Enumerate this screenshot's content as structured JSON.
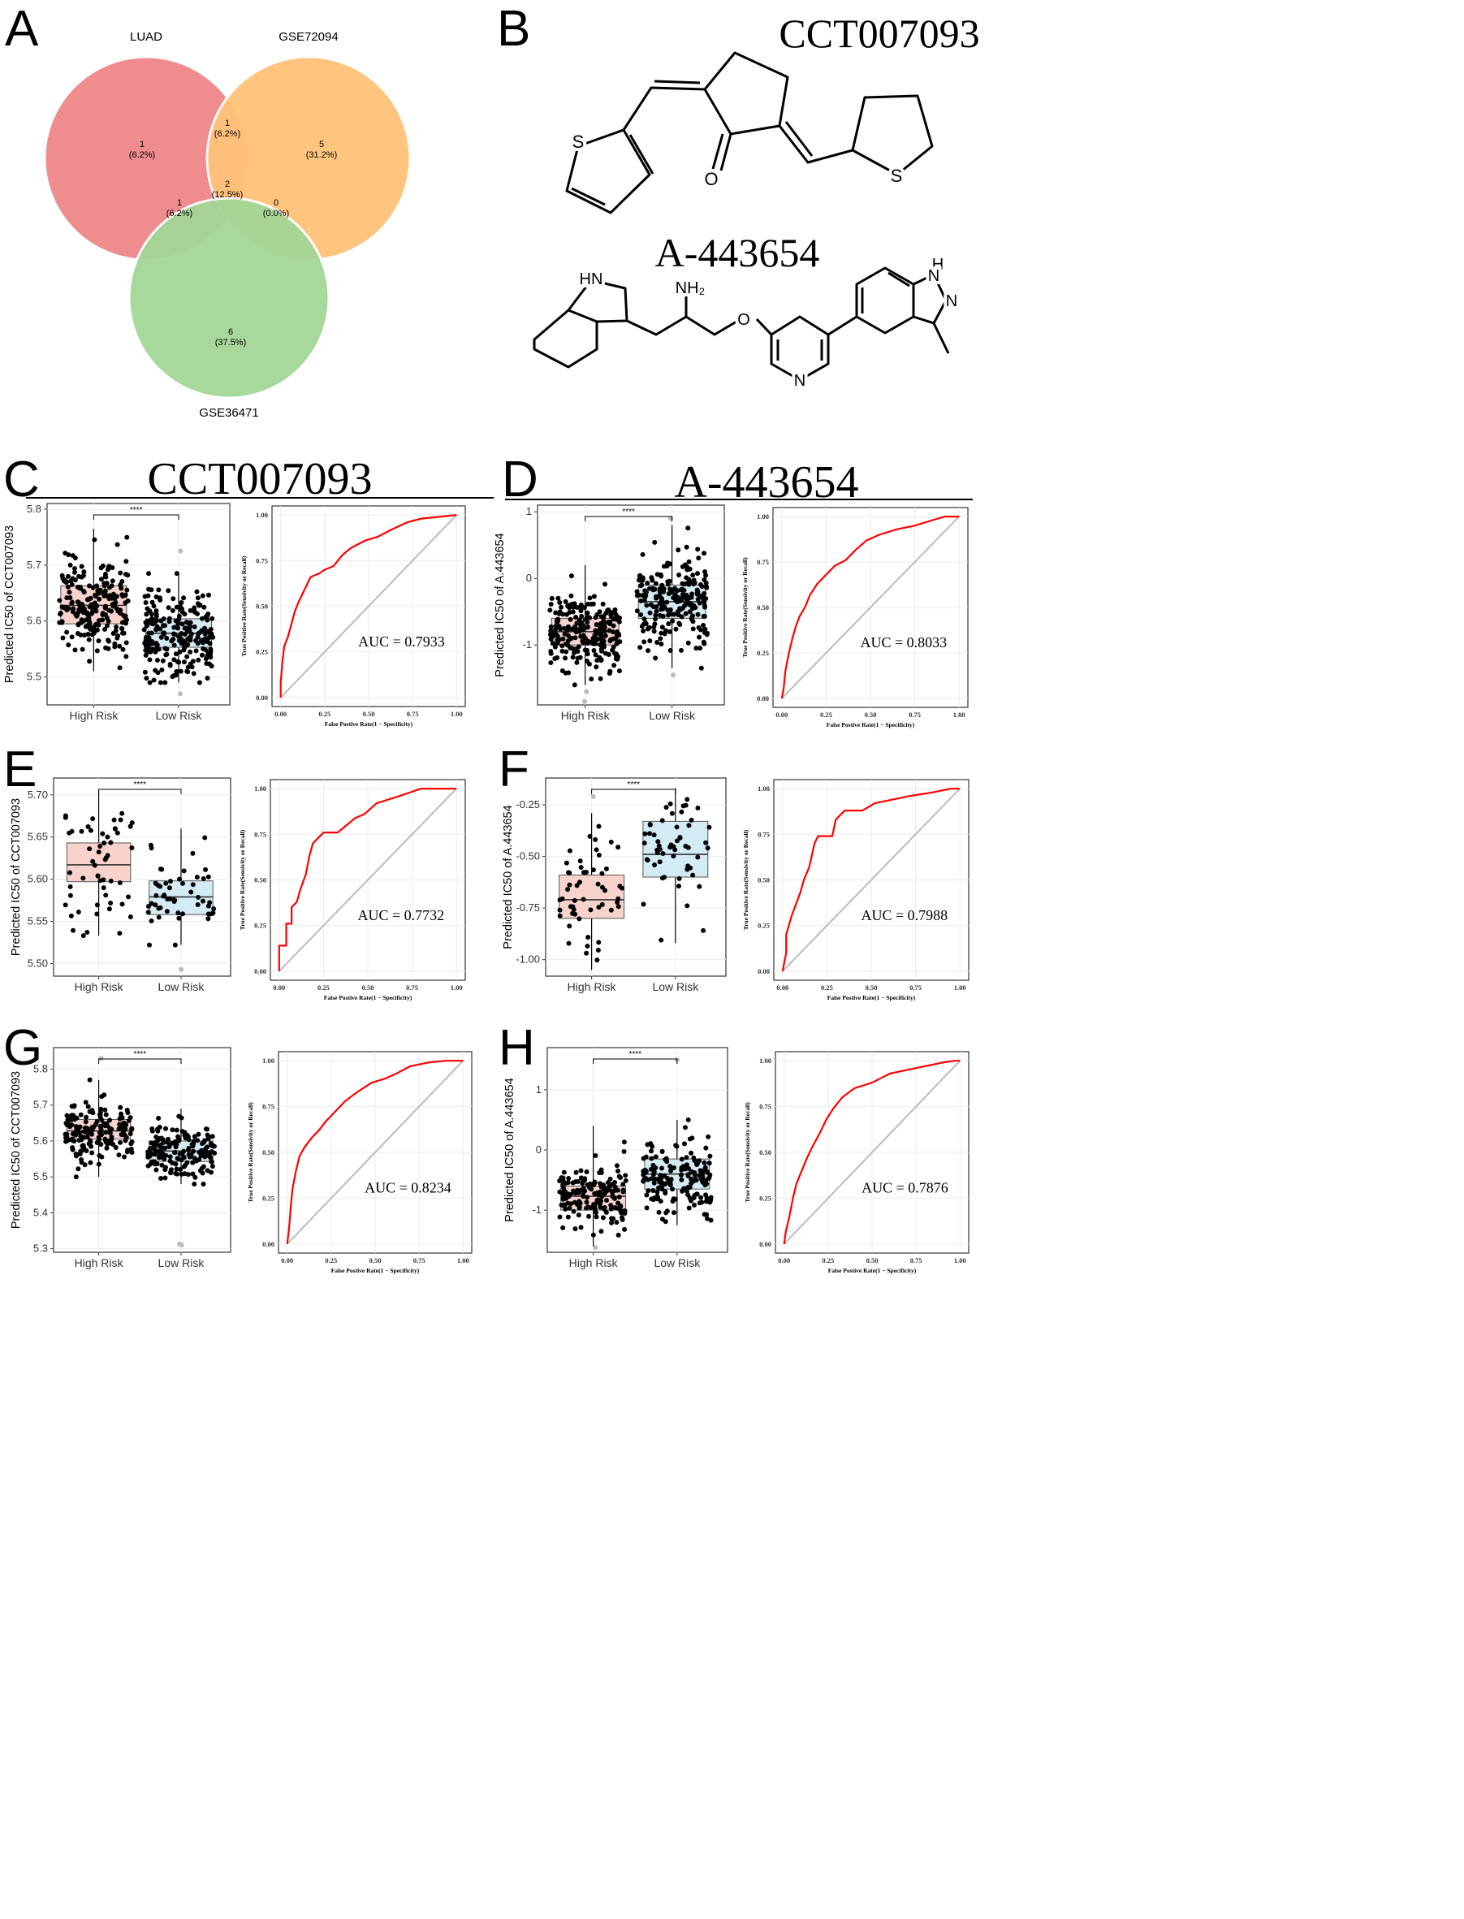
{
  "panel_letters": [
    "A",
    "B",
    "C",
    "D",
    "E",
    "F",
    "G",
    "H"
  ],
  "chart_data": [
    {
      "panel": "A",
      "type": "venn",
      "sets": [
        "LUAD",
        "GSE72094",
        "GSE36471"
      ],
      "colors": {
        "LUAD": "#e8696d",
        "GSE72094": "#ffb862",
        "GSE36471": "#8ccb7f"
      },
      "regions": [
        {
          "id": "luad_only",
          "count": "1",
          "pct": "(6.2%)"
        },
        {
          "id": "gse72094_only",
          "count": "5",
          "pct": "(31.2%)"
        },
        {
          "id": "gse36471_only",
          "count": "6",
          "pct": "(37.5%)"
        },
        {
          "id": "luad_gse72094",
          "count": "1",
          "pct": "(6.2%)"
        },
        {
          "id": "luad_gse36471",
          "count": "1",
          "pct": "(6.2%)"
        },
        {
          "id": "gse72094_gse36471",
          "count": "0",
          "pct": "(0.0%)"
        },
        {
          "id": "all",
          "count": "2",
          "pct": "(12.5%)"
        }
      ]
    },
    {
      "panel": "B",
      "type": "chemical-structures",
      "compounds": [
        {
          "name": "CCT007093",
          "atoms": [
            "S",
            "O",
            "S"
          ]
        },
        {
          "name": "A-443654",
          "atoms": [
            "HN",
            "NH₂",
            "O",
            "H",
            "N",
            "N",
            "N"
          ]
        }
      ]
    },
    {
      "panel": "C",
      "type": "box",
      "section_title": "CCT007093",
      "ylabel": "Predicted IC50 of CCT007093",
      "categories": [
        "High Risk",
        "Low Risk"
      ],
      "ylim": [
        5.45,
        5.81
      ],
      "yticks": [
        "5.5",
        "5.6",
        "5.7",
        "5.8"
      ],
      "significance": "****",
      "series": [
        {
          "name": "High Risk",
          "color": "#f8d3cc",
          "q1": 5.595,
          "median": 5.628,
          "q3": 5.663,
          "wlow": 5.51,
          "whigh": 5.765,
          "n": 230,
          "sd": 0.046,
          "outliers": []
        },
        {
          "name": "Low Risk",
          "color": "#d3ebf4",
          "q1": 5.553,
          "median": 5.578,
          "q3": 5.604,
          "wlow": 5.49,
          "whigh": 5.685,
          "n": 230,
          "sd": 0.038,
          "outliers": [
            5.47,
            5.725
          ]
        }
      ]
    },
    {
      "panel": "C",
      "type": "roc",
      "auc_label": "AUC = 0.7933",
      "xlabel": "False Postive Rate(1 − Specificity)",
      "ylabel": "True Positive Rate(Sensivity or Recall)",
      "xticks": [
        "0.00",
        "0.25",
        "0.50",
        "0.75",
        "1.00"
      ],
      "yticks": [
        "0.00",
        "0.25",
        "0.50",
        "0.75",
        "1.00"
      ],
      "points": [
        [
          0,
          0
        ],
        [
          0.0,
          0.08
        ],
        [
          0.01,
          0.2
        ],
        [
          0.02,
          0.28
        ],
        [
          0.04,
          0.33
        ],
        [
          0.06,
          0.4
        ],
        [
          0.08,
          0.47
        ],
        [
          0.1,
          0.52
        ],
        [
          0.12,
          0.56
        ],
        [
          0.15,
          0.62
        ],
        [
          0.17,
          0.66
        ],
        [
          0.22,
          0.68
        ],
        [
          0.25,
          0.7
        ],
        [
          0.3,
          0.72
        ],
        [
          0.35,
          0.78
        ],
        [
          0.4,
          0.82
        ],
        [
          0.48,
          0.86
        ],
        [
          0.55,
          0.88
        ],
        [
          0.63,
          0.92
        ],
        [
          0.72,
          0.96
        ],
        [
          0.8,
          0.98
        ],
        [
          0.9,
          0.99
        ],
        [
          1,
          1
        ]
      ]
    },
    {
      "panel": "D",
      "type": "box",
      "section_title": "A-443654",
      "ylabel": "Predicted IC50 of A.443654",
      "categories": [
        "High Risk",
        "Low Risk"
      ],
      "ylim": [
        -1.9,
        1.1
      ],
      "yticks": [
        "-1",
        "0",
        "1"
      ],
      "significance": "****",
      "series": [
        {
          "name": "High Risk",
          "color": "#f8d3cc",
          "q1": -1.0,
          "median": -0.8,
          "q3": -0.6,
          "wlow": -1.6,
          "whigh": 0.2,
          "n": 230,
          "sd": 0.28,
          "outliers": [
            -1.85,
            -1.7
          ]
        },
        {
          "name": "Low Risk",
          "color": "#d3ebf4",
          "q1": -0.6,
          "median": -0.35,
          "q3": -0.1,
          "wlow": -1.35,
          "whigh": 0.8,
          "n": 230,
          "sd": 0.35,
          "outliers": [
            0.9,
            -1.45
          ]
        }
      ]
    },
    {
      "panel": "D",
      "type": "roc",
      "auc_label": "AUC = 0.8033",
      "xlabel": "False Postive Rate(1 − Specificity)",
      "ylabel": "True Positive Rate(Sensivity or Recall)",
      "xticks": [
        "0.00",
        "0.25",
        "0.50",
        "0.75",
        "1.00"
      ],
      "yticks": [
        "0.00",
        "0.25",
        "0.50",
        "0.75",
        "1.00"
      ],
      "points": [
        [
          0,
          0
        ],
        [
          0.01,
          0.05
        ],
        [
          0.02,
          0.15
        ],
        [
          0.04,
          0.25
        ],
        [
          0.06,
          0.33
        ],
        [
          0.08,
          0.4
        ],
        [
          0.1,
          0.45
        ],
        [
          0.13,
          0.5
        ],
        [
          0.16,
          0.57
        ],
        [
          0.2,
          0.63
        ],
        [
          0.25,
          0.68
        ],
        [
          0.3,
          0.73
        ],
        [
          0.36,
          0.76
        ],
        [
          0.42,
          0.82
        ],
        [
          0.48,
          0.87
        ],
        [
          0.55,
          0.9
        ],
        [
          0.65,
          0.93
        ],
        [
          0.75,
          0.95
        ],
        [
          0.85,
          0.98
        ],
        [
          0.92,
          1.0
        ],
        [
          1,
          1
        ]
      ]
    },
    {
      "panel": "E",
      "type": "box",
      "ylabel": "Predicted IC50 of CCT007093",
      "categories": [
        "High Risk",
        "Low Risk"
      ],
      "ylim": [
        5.485,
        5.72
      ],
      "yticks": [
        "5.50",
        "5.55",
        "5.60",
        "5.65",
        "5.70"
      ],
      "significance": "****",
      "series": [
        {
          "name": "High Risk",
          "color": "#f8d3cc",
          "q1": 5.597,
          "median": 5.617,
          "q3": 5.643,
          "wlow": 5.533,
          "whigh": 5.705,
          "n": 55,
          "sd": 0.042,
          "outliers": []
        },
        {
          "name": "Low Risk",
          "color": "#d3ebf4",
          "q1": 5.558,
          "median": 5.579,
          "q3": 5.598,
          "wlow": 5.522,
          "whigh": 5.66,
          "n": 55,
          "sd": 0.03,
          "outliers": [
            5.493
          ]
        }
      ]
    },
    {
      "panel": "E",
      "type": "roc",
      "auc_label": "AUC = 0.7732",
      "xlabel": "False Postive Rate(1 − Specificity)",
      "ylabel": "True Positive Rate(Sensivity or Recall)",
      "xticks": [
        "0.00",
        "0.25",
        "0.50",
        "0.75",
        "1.00"
      ],
      "yticks": [
        "0.00",
        "0.25",
        "0.50",
        "0.75",
        "1.00"
      ],
      "points": [
        [
          0,
          0
        ],
        [
          0,
          0.14
        ],
        [
          0.04,
          0.14
        ],
        [
          0.04,
          0.26
        ],
        [
          0.07,
          0.26
        ],
        [
          0.07,
          0.35
        ],
        [
          0.1,
          0.38
        ],
        [
          0.12,
          0.45
        ],
        [
          0.15,
          0.53
        ],
        [
          0.17,
          0.63
        ],
        [
          0.19,
          0.7
        ],
        [
          0.22,
          0.73
        ],
        [
          0.25,
          0.76
        ],
        [
          0.33,
          0.76
        ],
        [
          0.38,
          0.8
        ],
        [
          0.43,
          0.84
        ],
        [
          0.48,
          0.86
        ],
        [
          0.55,
          0.92
        ],
        [
          0.68,
          0.96
        ],
        [
          0.8,
          1.0
        ],
        [
          0.97,
          1.0
        ],
        [
          1,
          1
        ]
      ]
    },
    {
      "panel": "F",
      "type": "box",
      "ylabel": "Predicted IC50 of A.443654",
      "categories": [
        "High Risk",
        "Low Risk"
      ],
      "ylim": [
        -1.08,
        -0.12
      ],
      "yticks": [
        "-1.00",
        "-0.75",
        "-0.50",
        "-0.25"
      ],
      "significance": "****",
      "series": [
        {
          "name": "High Risk",
          "color": "#f8d3cc",
          "q1": -0.8,
          "median": -0.71,
          "q3": -0.59,
          "wlow": -1.05,
          "whigh": -0.29,
          "n": 55,
          "sd": 0.16,
          "outliers": [
            -0.21
          ]
        },
        {
          "name": "Low Risk",
          "color": "#d3ebf4",
          "q1": -0.6,
          "median": -0.49,
          "q3": -0.33,
          "wlow": -0.92,
          "whigh": -0.17,
          "n": 55,
          "sd": 0.17,
          "outliers": []
        }
      ]
    },
    {
      "panel": "F",
      "type": "roc",
      "auc_label": "AUC = 0.7988",
      "xlabel": "False Postive Rate(1 − Specificity)",
      "ylabel": "True Positive Rate(Sensivity or Recall)",
      "xticks": [
        "0.00",
        "0.25",
        "0.50",
        "0.75",
        "1.00"
      ],
      "yticks": [
        "0.00",
        "0.25",
        "0.50",
        "0.75",
        "1.00"
      ],
      "points": [
        [
          0,
          0
        ],
        [
          0.02,
          0.1
        ],
        [
          0.02,
          0.2
        ],
        [
          0.05,
          0.3
        ],
        [
          0.08,
          0.38
        ],
        [
          0.1,
          0.43
        ],
        [
          0.12,
          0.5
        ],
        [
          0.15,
          0.57
        ],
        [
          0.18,
          0.7
        ],
        [
          0.2,
          0.74
        ],
        [
          0.28,
          0.74
        ],
        [
          0.3,
          0.83
        ],
        [
          0.35,
          0.88
        ],
        [
          0.45,
          0.88
        ],
        [
          0.52,
          0.92
        ],
        [
          0.62,
          0.94
        ],
        [
          0.72,
          0.96
        ],
        [
          0.85,
          0.98
        ],
        [
          0.95,
          1.0
        ],
        [
          1,
          1
        ]
      ]
    },
    {
      "panel": "G",
      "type": "box",
      "ylabel": "Predicted IC50 of CCT007093",
      "categories": [
        "High Risk",
        "Low Risk"
      ],
      "ylim": [
        5.29,
        5.86
      ],
      "yticks": [
        "5.3",
        "5.4",
        "5.5",
        "5.6",
        "5.7",
        "5.8"
      ],
      "significance": "****",
      "series": [
        {
          "name": "High Risk",
          "color": "#f8d3cc",
          "q1": 5.605,
          "median": 5.628,
          "q3": 5.66,
          "wlow": 5.5,
          "whigh": 5.77,
          "n": 170,
          "sd": 0.042,
          "outliers": [
            5.83
          ]
        },
        {
          "name": "Low Risk",
          "color": "#d3ebf4",
          "q1": 5.543,
          "median": 5.572,
          "q3": 5.6,
          "wlow": 5.48,
          "whigh": 5.69,
          "n": 170,
          "sd": 0.037,
          "outliers": [
            5.31,
            5.313
          ]
        }
      ]
    },
    {
      "panel": "G",
      "type": "roc",
      "auc_label": "AUC = 0.8234",
      "xlabel": "False Postive Rate(1 − Specificity)",
      "ylabel": "True Positive Rate(Sensivity or Recall)",
      "xticks": [
        "0.00",
        "0.25",
        "0.50",
        "0.75",
        "1.00"
      ],
      "yticks": [
        "0.00",
        "0.25",
        "0.50",
        "0.75",
        "1.00"
      ],
      "points": [
        [
          0,
          0
        ],
        [
          0.01,
          0.08
        ],
        [
          0.02,
          0.2
        ],
        [
          0.03,
          0.3
        ],
        [
          0.05,
          0.4
        ],
        [
          0.07,
          0.48
        ],
        [
          0.1,
          0.53
        ],
        [
          0.14,
          0.58
        ],
        [
          0.18,
          0.62
        ],
        [
          0.22,
          0.67
        ],
        [
          0.27,
          0.72
        ],
        [
          0.33,
          0.78
        ],
        [
          0.4,
          0.83
        ],
        [
          0.48,
          0.88
        ],
        [
          0.55,
          0.9
        ],
        [
          0.62,
          0.93
        ],
        [
          0.7,
          0.97
        ],
        [
          0.8,
          0.99
        ],
        [
          0.9,
          1.0
        ],
        [
          1,
          1
        ]
      ]
    },
    {
      "panel": "H",
      "type": "box",
      "ylabel": "Predicted IC50 of A.443654",
      "categories": [
        "High Risk",
        "Low Risk"
      ],
      "ylim": [
        -1.7,
        1.7
      ],
      "yticks": [
        "-1",
        "0",
        "1"
      ],
      "significance": "****",
      "series": [
        {
          "name": "High Risk",
          "color": "#f8d3cc",
          "q1": -1.0,
          "median": -0.77,
          "q3": -0.6,
          "wlow": -1.6,
          "whigh": 0.4,
          "n": 170,
          "sd": 0.27,
          "outliers": [
            -1.62
          ]
        },
        {
          "name": "Low Risk",
          "color": "#d3ebf4",
          "q1": -0.65,
          "median": -0.4,
          "q3": -0.15,
          "wlow": -1.25,
          "whigh": 0.5,
          "n": 170,
          "sd": 0.3,
          "outliers": [
            1.5
          ]
        }
      ]
    },
    {
      "panel": "H",
      "type": "roc",
      "auc_label": "AUC = 0.7876",
      "xlabel": "False Postive Rate(1 − Specificity)",
      "ylabel": "True Positive Rate(Sensivity or Recall)",
      "xticks": [
        "0.00",
        "0.25",
        "0.50",
        "0.75",
        "1.00"
      ],
      "yticks": [
        "0.00",
        "0.25",
        "0.50",
        "0.75",
        "1.00"
      ],
      "points": [
        [
          0,
          0
        ],
        [
          0.01,
          0.07
        ],
        [
          0.03,
          0.15
        ],
        [
          0.05,
          0.25
        ],
        [
          0.07,
          0.33
        ],
        [
          0.1,
          0.4
        ],
        [
          0.13,
          0.47
        ],
        [
          0.16,
          0.53
        ],
        [
          0.2,
          0.6
        ],
        [
          0.24,
          0.68
        ],
        [
          0.28,
          0.74
        ],
        [
          0.33,
          0.8
        ],
        [
          0.4,
          0.85
        ],
        [
          0.5,
          0.88
        ],
        [
          0.6,
          0.93
        ],
        [
          0.7,
          0.95
        ],
        [
          0.8,
          0.97
        ],
        [
          0.9,
          0.99
        ],
        [
          0.97,
          1.0
        ],
        [
          1,
          1
        ]
      ]
    }
  ]
}
